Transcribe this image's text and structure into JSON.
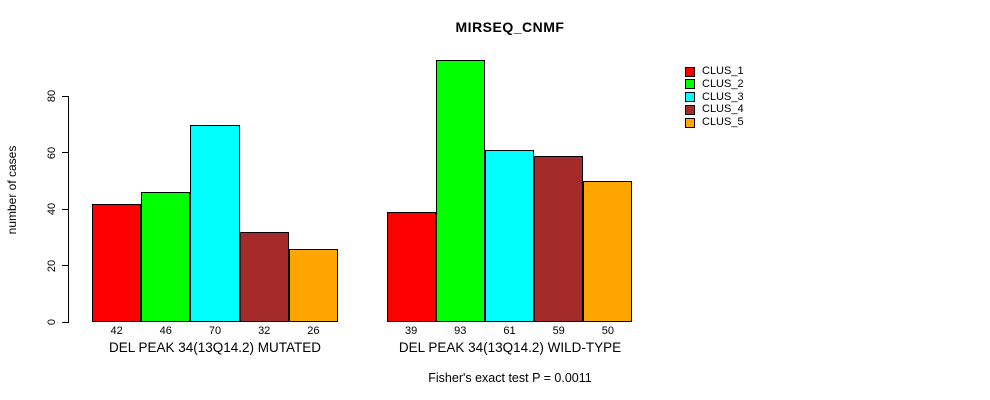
{
  "chart_data": {
    "type": "bar",
    "title": "MIRSEQ_CNMF",
    "ylabel": "number of cases",
    "xlabel": "",
    "yticks": [
      0,
      20,
      40,
      60,
      80
    ],
    "ylim": [
      0,
      100
    ],
    "grid": false,
    "legend_position": "right",
    "categories": [
      "DEL PEAK 34(13Q14.2) MUTATED",
      "DEL PEAK 34(13Q14.2) WILD-TYPE"
    ],
    "series": [
      {
        "name": "CLUS_1",
        "color": "#FF0000",
        "values": [
          42,
          39
        ]
      },
      {
        "name": "CLUS_2",
        "color": "#00FF00",
        "values": [
          46,
          93
        ]
      },
      {
        "name": "CLUS_3",
        "color": "#00FFFF",
        "values": [
          70,
          61
        ]
      },
      {
        "name": "CLUS_4",
        "color": "#A52A2A",
        "values": [
          32,
          59
        ]
      },
      {
        "name": "CLUS_5",
        "color": "#FFA500",
        "values": [
          26,
          50
        ]
      }
    ],
    "bar_value_labels_shown": true,
    "annotation": "Fisher's exact test P = 0.0011"
  },
  "colors": {
    "background": "#FFFFFF",
    "axis": "#000000",
    "bar_border": "#000000",
    "text": "#000000"
  }
}
